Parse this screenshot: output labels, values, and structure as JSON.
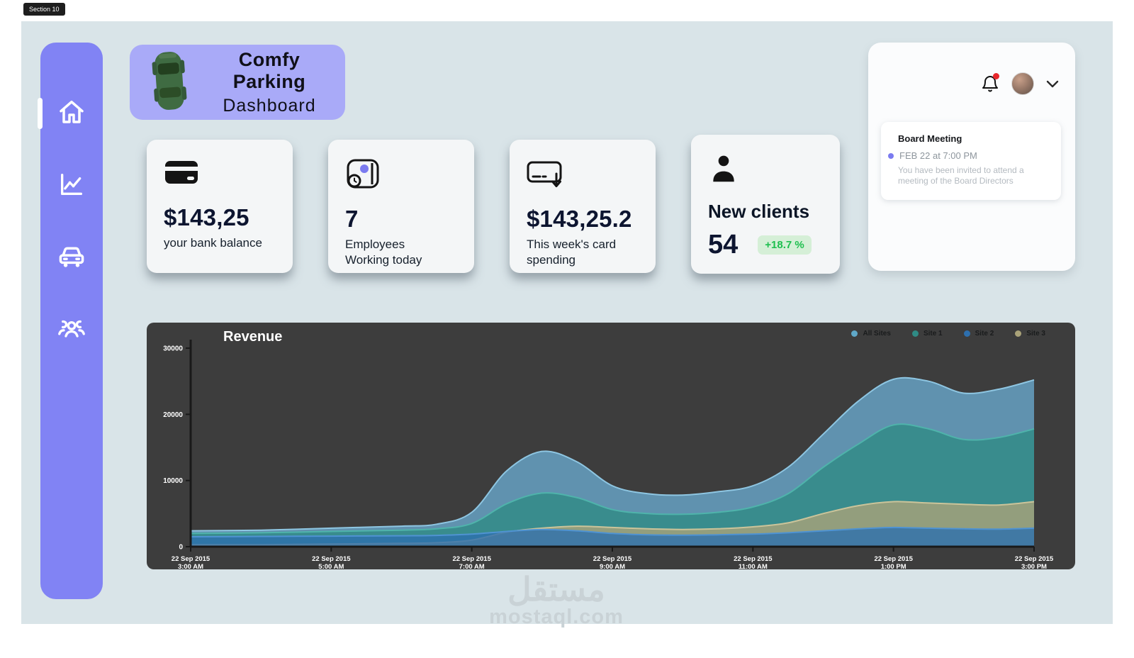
{
  "badge": {
    "label": "Section 10"
  },
  "brand": {
    "title_line1": "Comfy Parking",
    "title_line2": "Dashboard"
  },
  "icons": {
    "sidebar": [
      "home-icon",
      "analytics-chart-icon",
      "car-icon",
      "clients-group-icon"
    ],
    "header": [
      "bell-icon",
      "user-avatar",
      "chevron-down-icon"
    ],
    "cards": [
      "credit-card-icon",
      "employees-clock-icon",
      "card-spending-icon",
      "person-icon"
    ],
    "brand_image": "green-car-top-view"
  },
  "stats": [
    {
      "value": "$143,25",
      "label": "your bank balance"
    },
    {
      "value": "7",
      "label": "Employees Working today"
    },
    {
      "value": "$143,25.2",
      "label": "This week's card spending"
    },
    {
      "title": "New clients",
      "value": "54",
      "delta": "+18.7 %",
      "delta_color": "#1dbf4e"
    }
  ],
  "notifications": {
    "board_meeting": {
      "title": "Board Meeting",
      "datetime": "FEB 22 at 7:00 PM",
      "body": "You have been invited to attend a meeting of the Board Directors",
      "bullet_color": "#7b7bf0"
    }
  },
  "watermark": {
    "arabic": "مستقل",
    "latin": "mostaql.com"
  },
  "theme": {
    "canvas_bg": "#d9e4e8",
    "sidebar_bg": "#8183f4",
    "brand_bg": "#a9aaf8",
    "card_bg": "#f4f6f7",
    "chart_bg": "#3d3d3d",
    "accent": "#7b7bf0",
    "delta_green": "#1dbf4e"
  },
  "chart_data": {
    "type": "area",
    "title": "Revenue",
    "background": "#3d3d3d",
    "grid": false,
    "legend_position": "top-right",
    "xlim": [
      3,
      15
    ],
    "ylim": [
      0,
      30000
    ],
    "yticks": [
      0,
      10000,
      20000,
      30000
    ],
    "x": [
      3,
      4,
      5,
      6,
      6.5,
      7,
      7.5,
      8,
      8.5,
      9,
      9.5,
      10,
      10.5,
      11,
      11.5,
      12,
      12.5,
      13,
      13.5,
      14,
      14.5,
      15
    ],
    "x_ticks": [
      {
        "h": 3,
        "date": "22 Sep 2015",
        "time": "3:00 AM"
      },
      {
        "h": 5,
        "date": "22 Sep 2015",
        "time": "5:00 AM"
      },
      {
        "h": 7,
        "date": "22 Sep 2015",
        "time": "7:00 AM"
      },
      {
        "h": 9,
        "date": "22 Sep 2015",
        "time": "9:00 AM"
      },
      {
        "h": 11,
        "date": "22 Sep 2015",
        "time": "11:00 AM"
      },
      {
        "h": 13,
        "date": "22 Sep 2015",
        "time": "1:00 PM"
      },
      {
        "h": 15,
        "date": "22 Sep 2015",
        "time": "3:00 PM"
      }
    ],
    "series": [
      {
        "name": "All Sites",
        "color": "#69a7cc",
        "stroke": "#8ec6e2",
        "values": [
          2400,
          2500,
          2800,
          3100,
          3400,
          5200,
          11500,
          14400,
          12800,
          9200,
          8000,
          7800,
          8300,
          9200,
          12000,
          17000,
          22000,
          25300,
          25000,
          23200,
          23800,
          25200
        ]
      },
      {
        "name": "Site 1",
        "color": "#2f8b85",
        "stroke": "#4fb3ab",
        "values": [
          2000,
          2100,
          2300,
          2500,
          2700,
          3500,
          6500,
          8100,
          7400,
          5600,
          5000,
          4900,
          5200,
          6000,
          8000,
          12000,
          15500,
          18400,
          17800,
          16200,
          16500,
          17800
        ]
      },
      {
        "name": "Site 3",
        "color": "#aaa379",
        "stroke": "#cbc49a",
        "values": [
          300,
          300,
          400,
          500,
          600,
          1000,
          2200,
          2800,
          3100,
          2900,
          2700,
          2600,
          2700,
          3000,
          3600,
          5000,
          6200,
          6800,
          6600,
          6400,
          6300,
          6800
        ]
      },
      {
        "name": "Site 2",
        "color": "#2d6fae",
        "stroke": "#4f93d2",
        "values": [
          1500,
          1550,
          1600,
          1650,
          1700,
          1900,
          2300,
          2600,
          2400,
          2000,
          1800,
          1750,
          1800,
          1900,
          2100,
          2400,
          2700,
          2900,
          2800,
          2700,
          2650,
          2800
        ]
      }
    ],
    "legend": [
      {
        "label": "All Sites",
        "color": "#5fa8c8"
      },
      {
        "label": "Site 1",
        "color": "#2f8b85"
      },
      {
        "label": "Site 2",
        "color": "#2d6fae"
      },
      {
        "label": "Site 3",
        "color": "#aaa379"
      }
    ]
  }
}
